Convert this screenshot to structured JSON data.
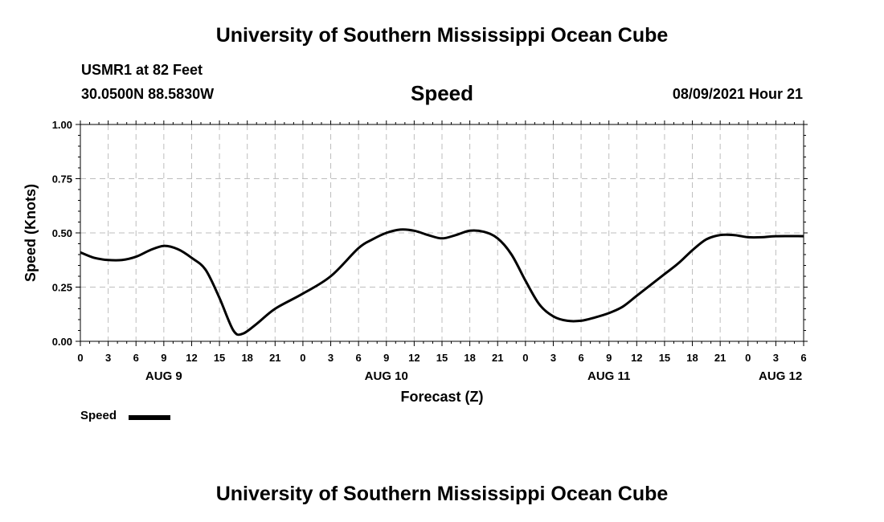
{
  "header": {
    "title": "University of Southern Mississippi Ocean Cube",
    "station": "USMR1 at 82 Feet",
    "coords": "30.0500N  88.5830W",
    "chart_name": "Speed",
    "datetime": "08/09/2021 Hour 21"
  },
  "footer": {
    "title": "University of Southern Mississippi Ocean Cube"
  },
  "legend": {
    "label": "Speed"
  },
  "chart_data": {
    "type": "line",
    "title": "Speed",
    "xlabel": "Forecast (Z)",
    "ylabel": "Speed (Knots)",
    "xlim": [
      0,
      78
    ],
    "ylim": [
      0,
      1
    ],
    "yticks": [
      0,
      0.25,
      0.5,
      0.75,
      1.0
    ],
    "ytick_labels": [
      "0.00",
      "0.25",
      "0.50",
      "0.75",
      "1.00"
    ],
    "xticks": [
      0,
      3,
      6,
      9,
      12,
      15,
      18,
      21,
      24,
      27,
      30,
      33,
      36,
      39,
      42,
      45,
      48,
      51,
      54,
      57,
      60,
      63,
      66,
      69,
      72,
      75,
      78
    ],
    "xtick_labels": [
      "0",
      "3",
      "6",
      "9",
      "12",
      "15",
      "18",
      "21",
      "0",
      "3",
      "6",
      "9",
      "12",
      "15",
      "18",
      "21",
      "0",
      "3",
      "6",
      "9",
      "12",
      "15",
      "18",
      "21",
      "0",
      "3",
      "6"
    ],
    "day_labels": [
      {
        "x": 9,
        "label": "AUG 9"
      },
      {
        "x": 33,
        "label": "AUG 10"
      },
      {
        "x": 57,
        "label": "AUG 11"
      },
      {
        "x": 75.5,
        "label": "AUG 12"
      }
    ],
    "grid": true,
    "series": [
      {
        "name": "Speed",
        "color": "#000000",
        "x": [
          0,
          1.5,
          3,
          4.5,
          6,
          7.5,
          9,
          10.5,
          12,
          13.5,
          15,
          16.5,
          17.5,
          19,
          21,
          24,
          27,
          30,
          31.5,
          33,
          34.5,
          36,
          37.5,
          39,
          40.5,
          42,
          43.5,
          45,
          46.5,
          48,
          49.5,
          51,
          52.5,
          54,
          55.5,
          57,
          58.5,
          60,
          61.5,
          63,
          64.5,
          66,
          67.5,
          69,
          70.5,
          72,
          73.5,
          75,
          78
        ],
        "values": [
          0.41,
          0.385,
          0.375,
          0.375,
          0.39,
          0.42,
          0.44,
          0.425,
          0.385,
          0.33,
          0.2,
          0.05,
          0.035,
          0.08,
          0.15,
          0.22,
          0.3,
          0.43,
          0.47,
          0.5,
          0.515,
          0.51,
          0.49,
          0.475,
          0.49,
          0.51,
          0.505,
          0.475,
          0.4,
          0.28,
          0.17,
          0.115,
          0.095,
          0.095,
          0.11,
          0.13,
          0.16,
          0.21,
          0.26,
          0.31,
          0.36,
          0.42,
          0.47,
          0.49,
          0.49,
          0.48,
          0.48,
          0.485,
          0.485
        ]
      }
    ]
  }
}
